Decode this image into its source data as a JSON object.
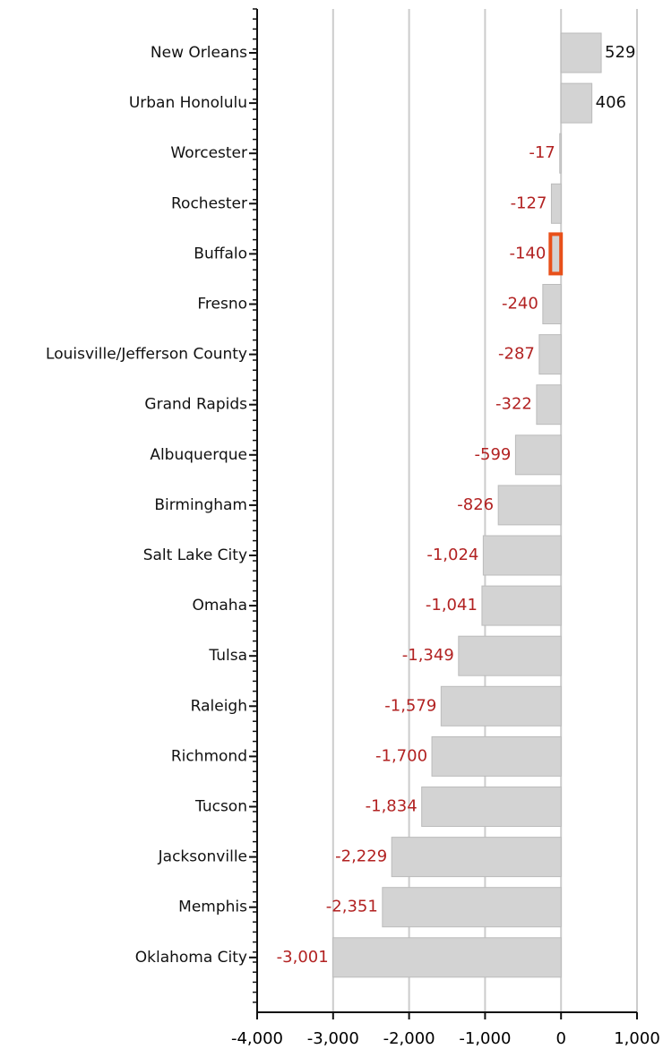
{
  "chart_data": {
    "type": "hbar",
    "categories": [
      "New Orleans",
      "Urban Honolulu",
      "Worcester",
      "Rochester",
      "Buffalo",
      "Fresno",
      "Louisville/Jefferson County",
      "Grand Rapids",
      "Albuquerque",
      "Birmingham",
      "Salt Lake City",
      "Omaha",
      "Tulsa",
      "Raleigh",
      "Richmond",
      "Tucson",
      "Jacksonville",
      "Memphis",
      "Oklahoma City"
    ],
    "values": [
      529,
      406,
      -17,
      -127,
      -140,
      -240,
      -287,
      -322,
      -599,
      -826,
      -1024,
      -1041,
      -1349,
      -1579,
      -1700,
      -1834,
      -2229,
      -2351,
      -3001
    ],
    "value_labels": [
      "529",
      "406",
      "-17",
      "-127",
      "-140",
      "-240",
      "-287",
      "-322",
      "-599",
      "-826",
      "-1,024",
      "-1,041",
      "-1,349",
      "-1,579",
      "-1,700",
      "-1,834",
      "-2,229",
      "-2,351",
      "-3,001"
    ],
    "color": "#d3d3d3",
    "positive_label_color": "#111111",
    "negative_label_color": "#b22222",
    "highlighted": 4,
    "highlight_color": "#e8501a",
    "xlim": [
      -4000,
      1000
    ],
    "xticks": [
      {
        "value": -4000,
        "label": "-4,000"
      },
      {
        "value": -3000,
        "label": "-3,000"
      },
      {
        "value": -2000,
        "label": "-2,000"
      },
      {
        "value": -1000,
        "label": "-1,000"
      },
      0,
      {
        "value": 1000,
        "label": "1,000"
      }
    ],
    "grid": true
  }
}
